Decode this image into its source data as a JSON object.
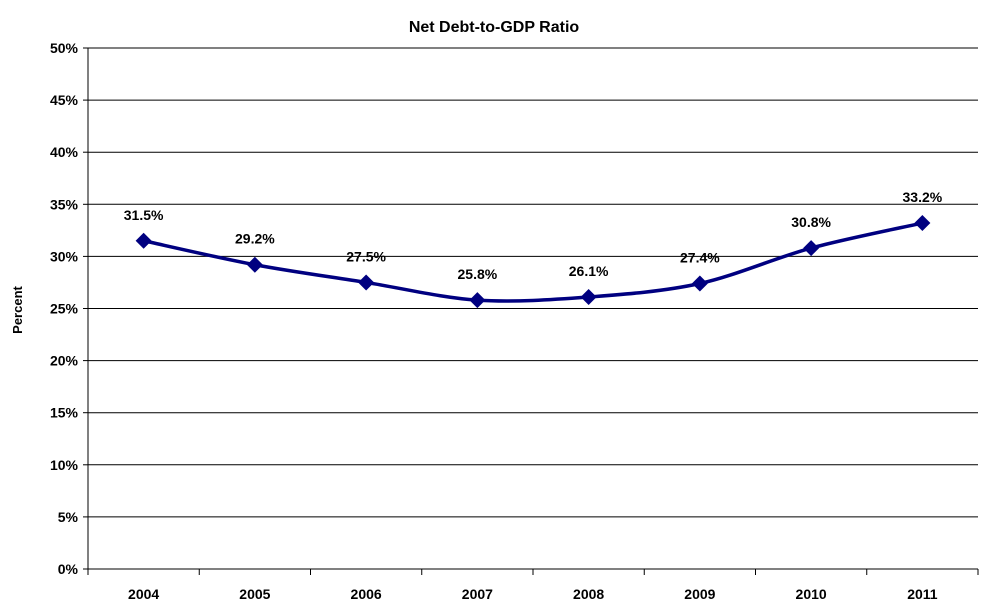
{
  "chart_data": {
    "type": "line",
    "title": "Net Debt-to-GDP Ratio",
    "ylabel": "Percent",
    "xlabel": "",
    "categories": [
      "2004",
      "2005",
      "2006",
      "2007",
      "2008",
      "2009",
      "2010",
      "2011"
    ],
    "series": [
      {
        "values": [
          31.5,
          29.2,
          27.5,
          25.8,
          26.1,
          27.4,
          30.8,
          33.2
        ],
        "labels": [
          "31.5%",
          "29.2%",
          "27.5%",
          "25.8%",
          "26.1%",
          "27.4%",
          "30.8%",
          "33.2%"
        ],
        "color": "#000080",
        "marker": "diamond"
      }
    ],
    "ylim": [
      0,
      50
    ],
    "yticks": [
      "0%",
      "5%",
      "10%",
      "15%",
      "20%",
      "25%",
      "30%",
      "35%",
      "40%",
      "45%",
      "50%"
    ],
    "grid": true,
    "legend": "none"
  }
}
